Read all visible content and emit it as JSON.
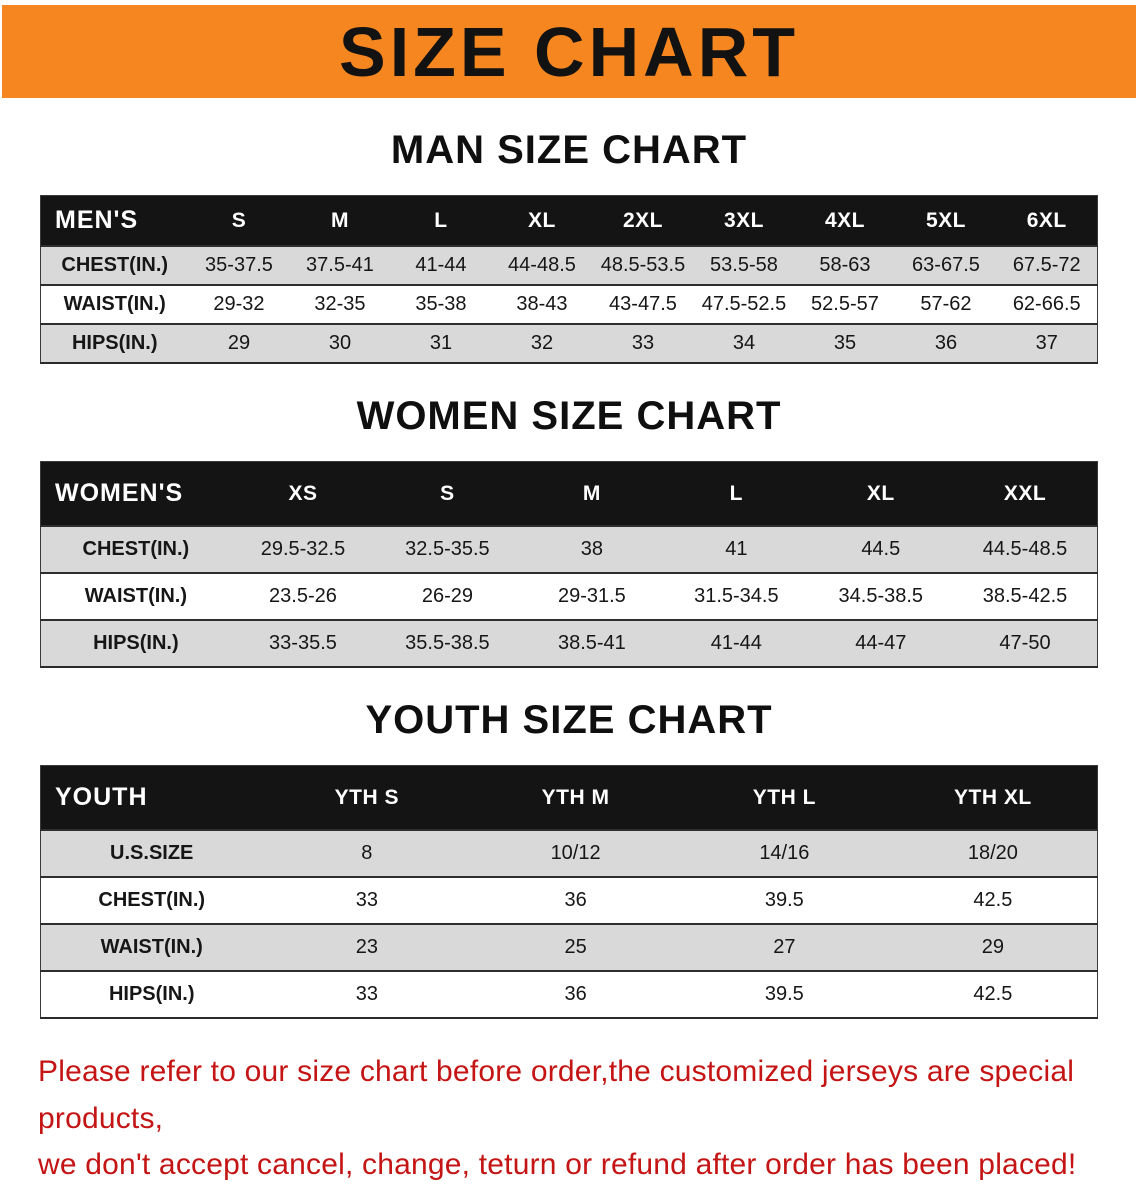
{
  "colors": {
    "banner_bg": "#F6861F",
    "table_header_bg": "#141414",
    "row_stripe": "#D9D9D9",
    "note_red": "#C41414"
  },
  "banner": {
    "title": "SIZE CHART"
  },
  "sections": {
    "men": {
      "heading": "MAN SIZE CHART",
      "table": {
        "header": [
          "MEN'S",
          "S",
          "M",
          "L",
          "XL",
          "2XL",
          "3XL",
          "4XL",
          "5XL",
          "6XL"
        ],
        "rows": [
          [
            "CHEST(IN.)",
            "35-37.5",
            "37.5-41",
            "41-44",
            "44-48.5",
            "48.5-53.5",
            "53.5-58",
            "58-63",
            "63-67.5",
            "67.5-72"
          ],
          [
            "WAIST(IN.)",
            "29-32",
            "32-35",
            "35-38",
            "38-43",
            "43-47.5",
            "47.5-52.5",
            "52.5-57",
            "57-62",
            "62-66.5"
          ],
          [
            "HIPS(IN.)",
            "29",
            "30",
            "31",
            "32",
            "33",
            "34",
            "35",
            "36",
            "37"
          ]
        ]
      }
    },
    "women": {
      "heading": "WOMEN SIZE CHART",
      "table": {
        "header": [
          "WOMEN'S",
          "XS",
          "S",
          "M",
          "L",
          "XL",
          "XXL"
        ],
        "rows": [
          [
            "CHEST(IN.)",
            "29.5-32.5",
            "32.5-35.5",
            "38",
            "41",
            "44.5",
            "44.5-48.5"
          ],
          [
            "WAIST(IN.)",
            "23.5-26",
            "26-29",
            "29-31.5",
            "31.5-34.5",
            "34.5-38.5",
            "38.5-42.5"
          ],
          [
            "HIPS(IN.)",
            "33-35.5",
            "35.5-38.5",
            "38.5-41",
            "41-44",
            "44-47",
            "47-50"
          ]
        ]
      }
    },
    "youth": {
      "heading": "YOUTH SIZE CHART",
      "table": {
        "header": [
          "YOUTH",
          "YTH S",
          "YTH M",
          "YTH L",
          "YTH XL"
        ],
        "rows": [
          [
            "U.S.SIZE",
            "8",
            "10/12",
            "14/16",
            "18/20"
          ],
          [
            "CHEST(IN.)",
            "33",
            "36",
            "39.5",
            "42.5"
          ],
          [
            "WAIST(IN.)",
            "23",
            "25",
            "27",
            "29"
          ],
          [
            "HIPS(IN.)",
            "33",
            "36",
            "39.5",
            "42.5"
          ]
        ]
      }
    }
  },
  "footer_note": {
    "line1": "Please refer to our size chart before order,the customized jerseys are special products,",
    "line2": "we don't accept cancel, change, teturn or refund after order has been placed!"
  }
}
